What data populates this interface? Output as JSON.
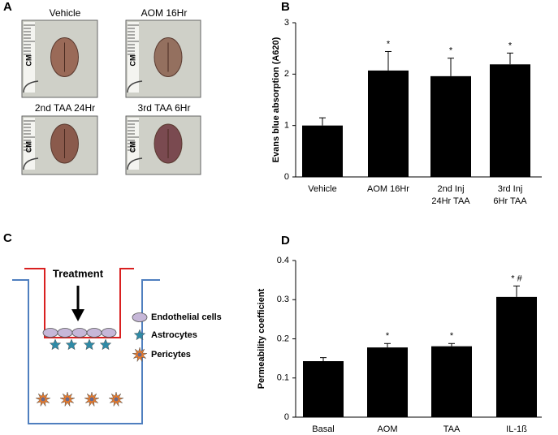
{
  "panel_labels": [
    "A",
    "B",
    "C",
    "D"
  ],
  "photos": {
    "labels": [
      "Vehicle",
      "AOM 16Hr",
      "2nd TAA 24Hr",
      "3rd TAA 6Hr"
    ],
    "ruler_label": "CM"
  },
  "diagram": {
    "treatment": "Treatment",
    "legend": [
      "Endothelial cells",
      "Astrocytes",
      "Pericytes"
    ]
  },
  "chart_data": [
    {
      "type": "bar",
      "ylabel": "Evans blue absorption (A620)",
      "categories": [
        [
          "Vehicle"
        ],
        [
          "AOM 16Hr"
        ],
        [
          "2nd Inj",
          "24Hr TAA"
        ],
        [
          "3rd Inj",
          "6Hr TAA"
        ]
      ],
      "values": [
        1.0,
        2.07,
        1.96,
        2.19
      ],
      "errors": [
        0.15,
        0.37,
        0.35,
        0.22
      ],
      "significance": [
        null,
        "*",
        "*",
        "*"
      ],
      "color": "#000000",
      "ylim": [
        0,
        3
      ],
      "yticks": [
        0,
        1,
        2,
        3
      ]
    },
    {
      "type": "bar",
      "ylabel": "Permeability coefficient",
      "categories": [
        [
          "Basal"
        ],
        [
          "AOM"
        ],
        [
          "TAA"
        ],
        [
          "IL-1ß"
        ]
      ],
      "values": [
        0.143,
        0.178,
        0.181,
        0.307
      ],
      "errors": [
        0.009,
        0.01,
        0.007,
        0.028
      ],
      "significance": [
        null,
        "*",
        "*",
        "* #"
      ],
      "color": "#000000",
      "ylim": [
        0,
        0.4
      ],
      "yticks": [
        0,
        0.1,
        0.2,
        0.3,
        0.4
      ]
    }
  ]
}
